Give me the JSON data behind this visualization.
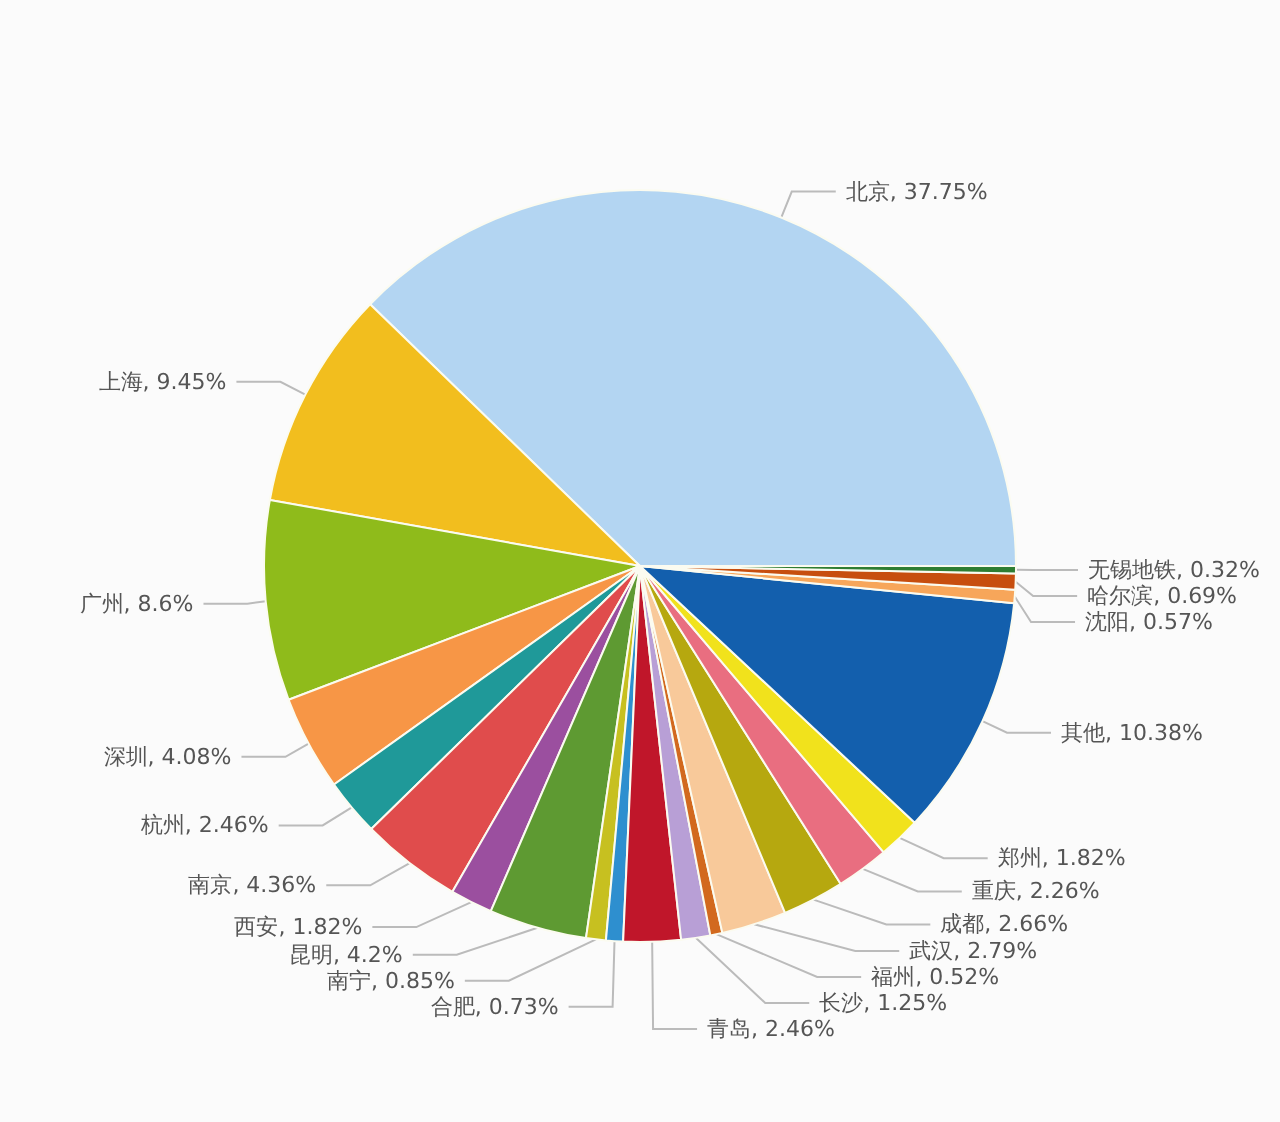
{
  "chart_data": {
    "type": "pie",
    "categories": [
      "北京",
      "上海",
      "广州",
      "深圳",
      "杭州",
      "南京",
      "西安",
      "昆明",
      "南宁",
      "合肥",
      "青岛",
      "长沙",
      "福州",
      "武汉",
      "成都",
      "重庆",
      "郑州",
      "其他",
      "沈阳",
      "哈尔滨",
      "无锡地铁"
    ],
    "values": [
      37.75,
      9.45,
      8.6,
      4.08,
      2.46,
      4.36,
      1.82,
      4.2,
      0.85,
      0.73,
      2.46,
      1.25,
      0.52,
      2.79,
      2.66,
      2.26,
      1.82,
      10.38,
      0.57,
      0.69,
      0.32
    ],
    "value_labels": [
      "37.75%",
      "9.45%",
      "8.6%",
      "4.08%",
      "2.46%",
      "4.36%",
      "1.82%",
      "4.2%",
      "0.85%",
      "0.73%",
      "2.46%",
      "1.25%",
      "0.52%",
      "2.79%",
      "2.66%",
      "2.26%",
      "1.82%",
      "10.38%",
      "0.57%",
      "0.69%",
      "0.32%"
    ],
    "colors": [
      "#b3d5f2",
      "#f2be1e",
      "#8fbb1b",
      "#f79646",
      "#1f9999",
      "#e04c4c",
      "#9b4f9f",
      "#5e9a32",
      "#c7c020",
      "#2e8fcf",
      "#c0162a",
      "#b89fd6",
      "#d2691e",
      "#f8c99a",
      "#b6a80f",
      "#e96e80",
      "#f1e21c",
      "#135fad",
      "#f7a65a",
      "#c74e0e",
      "#2e7d32"
    ]
  }
}
